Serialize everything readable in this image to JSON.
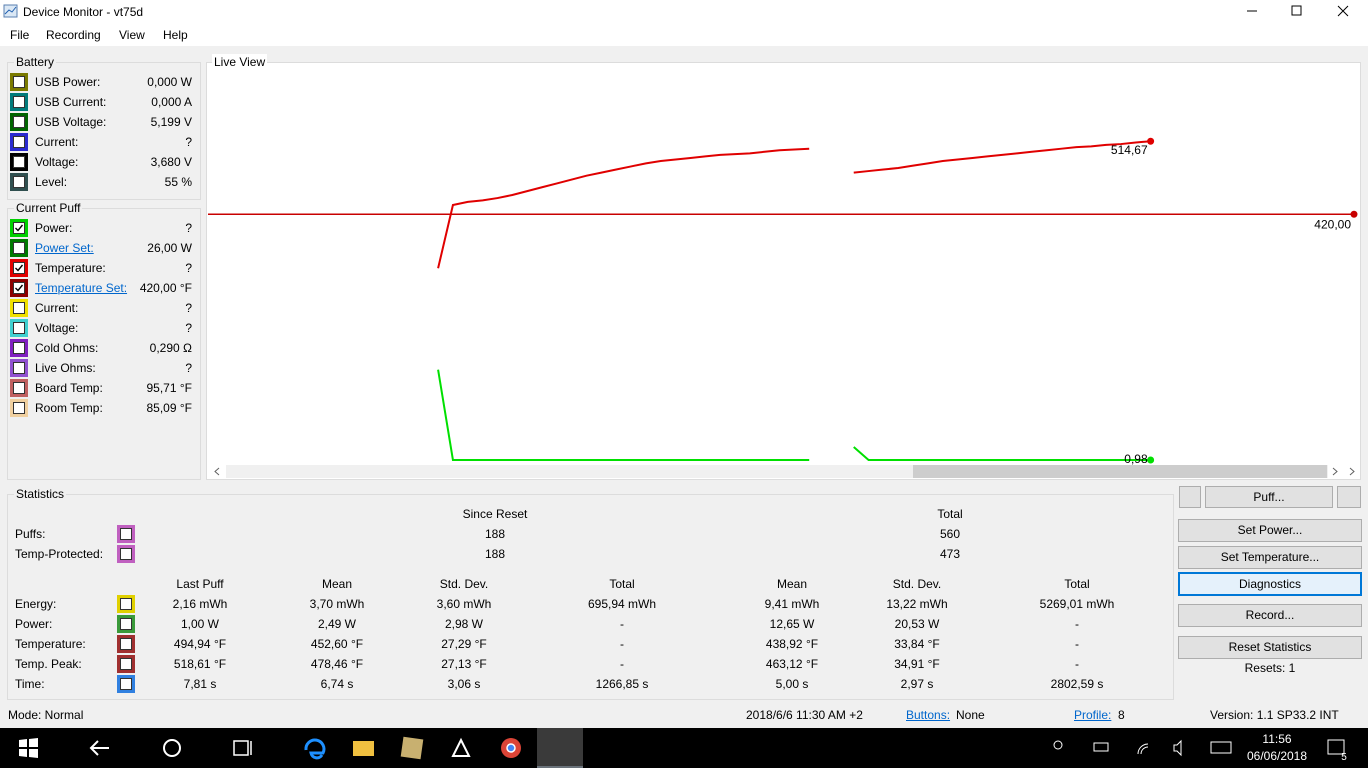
{
  "window": {
    "title": "Device Monitor - vt75d"
  },
  "menu": [
    "File",
    "Recording",
    "View",
    "Help"
  ],
  "battery": {
    "title": "Battery",
    "rows": [
      {
        "label": "USB Power:",
        "value": "0,000 W",
        "color": "#7a7a00",
        "checked": false
      },
      {
        "label": "USB Current:",
        "value": "0,000 A",
        "color": "#007a7a",
        "checked": false
      },
      {
        "label": "USB Voltage:",
        "value": "5,199 V",
        "color": "#006400",
        "checked": false
      },
      {
        "label": "Current:",
        "value": "?",
        "color": "#2a2ad0",
        "checked": false
      },
      {
        "label": "Voltage:",
        "value": "3,680 V",
        "color": "#000000",
        "checked": false
      },
      {
        "label": "Level:",
        "value": "55 %",
        "color": "#2f4f4f",
        "checked": false
      }
    ]
  },
  "current_puff": {
    "title": "Current Puff",
    "rows": [
      {
        "label": "Power:",
        "value": "?",
        "color": "#00d000",
        "checked": true,
        "link": false
      },
      {
        "label": "Power Set:",
        "value": "26,00 W",
        "color": "#007a00",
        "checked": false,
        "link": true
      },
      {
        "label": "Temperature:",
        "value": "?",
        "color": "#e00000",
        "checked": true,
        "link": false
      },
      {
        "label": "Temperature Set:",
        "value": "420,00 °F",
        "color": "#8b0000",
        "checked": true,
        "link": true
      },
      {
        "label": "Current:",
        "value": "?",
        "color": "#f0e000",
        "checked": false,
        "link": false
      },
      {
        "label": "Voltage:",
        "value": "?",
        "color": "#40d0d0",
        "checked": false,
        "link": false
      },
      {
        "label": "Cold Ohms:",
        "value": "0,290 Ω",
        "color": "#8020c0",
        "checked": false,
        "link": false
      },
      {
        "label": "Live Ohms:",
        "value": "?",
        "color": "#9050d0",
        "checked": false,
        "link": false
      },
      {
        "label": "Board Temp:",
        "value": "95,71 °F",
        "color": "#c06060",
        "checked": false,
        "link": false
      },
      {
        "label": "Room Temp:",
        "value": "85,09 °F",
        "color": "#f0d0a0",
        "checked": false,
        "link": false
      }
    ]
  },
  "live_view": {
    "title": "Live View"
  },
  "chart_data": {
    "type": "line",
    "x": [
      0,
      1,
      2,
      3,
      4,
      5,
      6,
      7,
      8,
      9,
      10,
      11,
      12,
      13,
      14,
      15,
      16,
      17,
      18,
      19,
      20,
      21,
      22,
      23,
      24,
      25,
      26,
      27,
      28,
      29,
      30,
      31,
      32,
      33,
      34,
      35,
      36,
      37,
      38,
      39,
      40,
      41,
      42,
      43,
      44,
      45,
      46,
      47,
      48
    ],
    "xlim": [
      -15.5,
      61.7
    ],
    "ylim": [
      95,
      607
    ],
    "y2lim": [
      -0.4,
      109
    ],
    "series": [
      {
        "color": "#e00000",
        "values": [
          350,
          432,
          436,
          438,
          441,
          445,
          450,
          455,
          460,
          465,
          470,
          474,
          478,
          482,
          486,
          489,
          491,
          493,
          495,
          497,
          498,
          499,
          501,
          503,
          504,
          505,
          null,
          null,
          474,
          476,
          478,
          480,
          483,
          486,
          489,
          491,
          493,
          495,
          497,
          499,
          501,
          503,
          505,
          507,
          508,
          510,
          511,
          513,
          514.67
        ],
        "value_labels": [
          null,
          null,
          null,
          null,
          null,
          null,
          null,
          null,
          null,
          null,
          null,
          null,
          null,
          null,
          null,
          null,
          null,
          null,
          null,
          null,
          null,
          null,
          null,
          null,
          null,
          null,
          null,
          null,
          null,
          null,
          null,
          null,
          null,
          null,
          null,
          null,
          null,
          null,
          null,
          null,
          null,
          null,
          null,
          null,
          null,
          null,
          null,
          null,
          "514,67"
        ]
      },
      {
        "color": "#00e000",
        "axis": "y2",
        "values": [
          26,
          1,
          1,
          1,
          1,
          1,
          1,
          1,
          1,
          1,
          1,
          1,
          1,
          1,
          1,
          1,
          1,
          1,
          1,
          1,
          1,
          1,
          1,
          1,
          1,
          1,
          null,
          null,
          4.6,
          1,
          1,
          1,
          1,
          1,
          1,
          1,
          1,
          1,
          1,
          1,
          1,
          1,
          1,
          1,
          1,
          1,
          1,
          1,
          0.98
        ],
        "value_labels": [
          null,
          null,
          null,
          null,
          null,
          null,
          null,
          null,
          null,
          null,
          null,
          null,
          null,
          null,
          null,
          null,
          null,
          null,
          null,
          null,
          null,
          null,
          null,
          null,
          null,
          null,
          null,
          null,
          null,
          null,
          null,
          null,
          null,
          null,
          null,
          null,
          null,
          null,
          null,
          null,
          null,
          null,
          null,
          null,
          null,
          null,
          null,
          null,
          "0,98"
        ]
      }
    ],
    "reference_line": {
      "value": 420,
      "label": "420,00",
      "color": "#c80000"
    }
  },
  "statistics": {
    "title": "Statistics",
    "since_reset": "Since Reset",
    "total": "Total",
    "count_rows": [
      {
        "label": "Puffs:",
        "color": "#c060c0",
        "since_reset": "188",
        "total": "560"
      },
      {
        "label": "Temp-Protected:",
        "color": "#c060c0",
        "since_reset": "188",
        "total": "473"
      }
    ],
    "columns": [
      "Last Puff",
      "Mean",
      "Std. Dev.",
      "Total",
      "Mean",
      "Std. Dev.",
      "Total"
    ],
    "rows": [
      {
        "label": "Energy:",
        "color": "#e0d000",
        "cells": [
          "2,16 mWh",
          "3,70 mWh",
          "3,60 mWh",
          "695,94 mWh",
          "9,41 mWh",
          "13,22 mWh",
          "5269,01 mWh"
        ]
      },
      {
        "label": "Power:",
        "color": "#3a9a3a",
        "cells": [
          "1,00 W",
          "2,49 W",
          "2,98 W",
          "-",
          "12,65 W",
          "20,53 W",
          "-"
        ]
      },
      {
        "label": "Temperature:",
        "color": "#a03030",
        "cells": [
          "494,94 °F",
          "452,60 °F",
          "27,29 °F",
          "-",
          "438,92 °F",
          "33,84 °F",
          "-"
        ]
      },
      {
        "label": "Temp. Peak:",
        "color": "#a03030",
        "cells": [
          "518,61 °F",
          "478,46 °F",
          "27,13 °F",
          "-",
          "463,12 °F",
          "34,91 °F",
          "-"
        ]
      },
      {
        "label": "Time:",
        "color": "#3080e0",
        "cells": [
          "7,81 s",
          "6,74 s",
          "3,06 s",
          "1266,85 s",
          "5,00 s",
          "2,97 s",
          "2802,59 s"
        ]
      }
    ]
  },
  "buttons": [
    "Puff...",
    "Set Power...",
    "Set Temperature...",
    "Diagnostics",
    "Record...",
    "Reset Statistics"
  ],
  "resets": "Resets: 1",
  "status_bar": {
    "mode": "Mode: Normal",
    "timestamp": "2018/6/6 11:30 AM +2",
    "buttons_label": "Buttons:",
    "buttons_value": "None",
    "profile_label": "Profile:",
    "profile_value": "8",
    "version": "Version: 1.1 SP33.2 INT"
  },
  "taskbar": {
    "time": "11:56",
    "date": "06/06/2018",
    "notifications": "5"
  }
}
